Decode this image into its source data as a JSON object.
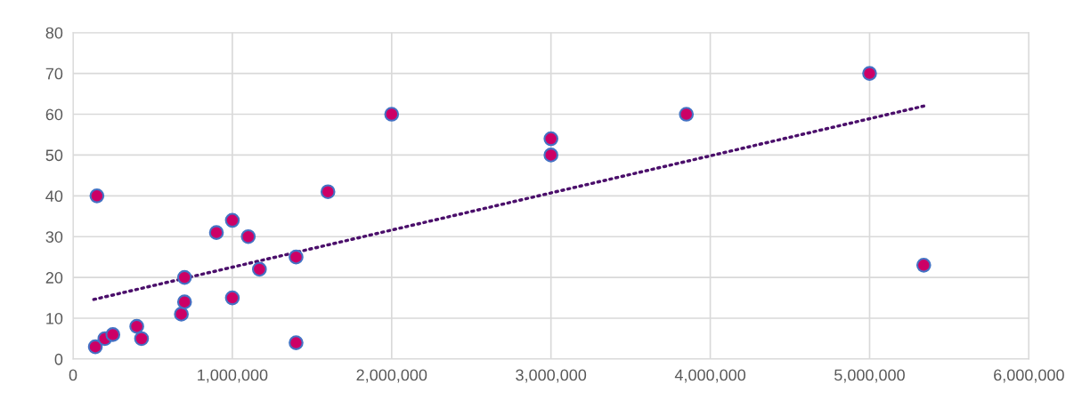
{
  "chart_data": {
    "type": "scatter",
    "series": [
      {
        "color": "#cc0066",
        "marker": "circle",
        "x": [
          140000,
          150000,
          200000,
          250000,
          400000,
          430000,
          680000,
          700000,
          700000,
          900000,
          1000000,
          1000000,
          1100000,
          1170000,
          1400000,
          1400000,
          1600000,
          2000000,
          3000000,
          3000000,
          3850000,
          5000000,
          5340000
        ],
        "values": [
          3,
          40,
          5,
          6,
          8,
          5,
          11,
          14,
          20,
          31,
          34,
          15,
          30,
          22,
          25,
          4,
          41,
          60,
          54,
          50,
          60,
          70,
          23
        ]
      },
      {
        "type": "line",
        "color": "#4b0f6b",
        "line_style": "dotted",
        "marker": "none",
        "x": [
          130000,
          5340000
        ],
        "values": [
          14.6,
          62
        ]
      }
    ],
    "xlim": [
      0,
      6000000
    ],
    "xticks": [
      {
        "value": 0,
        "label": "0"
      },
      {
        "value": 1000000,
        "label": "1,000,000"
      },
      {
        "value": 2000000,
        "label": "2,000,000"
      },
      {
        "value": 3000000,
        "label": "3,000,000"
      },
      {
        "value": 4000000,
        "label": "4,000,000"
      },
      {
        "value": 5000000,
        "label": "5,000,000"
      },
      {
        "value": 6000000,
        "label": "6,000,000"
      }
    ],
    "ylim": [
      0,
      80
    ],
    "yticks": [
      0,
      10,
      20,
      30,
      40,
      50,
      60,
      70,
      80
    ],
    "grid": true
  }
}
